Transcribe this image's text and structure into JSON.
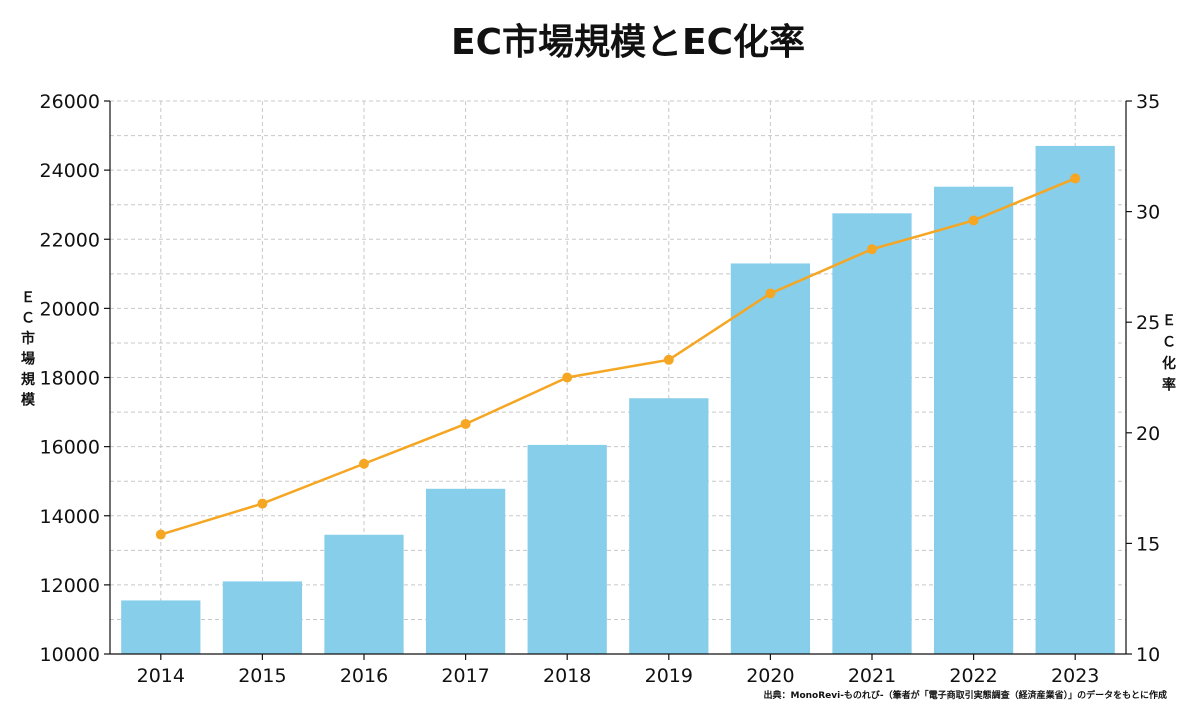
{
  "chart_data": {
    "type": "bar",
    "title": "EC市場規模とEC化率",
    "categories": [
      "2014",
      "2015",
      "2016",
      "2017",
      "2018",
      "2019",
      "2020",
      "2021",
      "2022",
      "2023"
    ],
    "series": [
      {
        "name": "",
        "type": "bar",
        "axis": "left",
        "values": [
          11550,
          12100,
          13450,
          14780,
          16050,
          17400,
          21300,
          22750,
          23520,
          24700
        ],
        "color": "#87ceeb"
      },
      {
        "name": "",
        "type": "line",
        "axis": "right",
        "values": [
          15.4,
          16.8,
          18.6,
          20.4,
          22.5,
          23.3,
          26.3,
          28.3,
          29.6,
          31.5
        ],
        "color": "#f5a623"
      }
    ],
    "ylabel": "ＥＣ市場規模",
    "y2label": "ＥＣ化率",
    "ylim": [
      10000,
      26000
    ],
    "y2lim": [
      10,
      35
    ],
    "yticks": [
      "10000",
      "12000",
      "14000",
      "16000",
      "18000",
      "20000",
      "22000",
      "24000",
      "26000"
    ],
    "y2ticks": [
      "10",
      "15",
      "20",
      "25",
      "30",
      "35"
    ],
    "grid": true,
    "source": "出典：MonoRevi-ものれび-（筆者が「電子商取引実態調査（経済産業省）」のデータをもとに作成"
  }
}
